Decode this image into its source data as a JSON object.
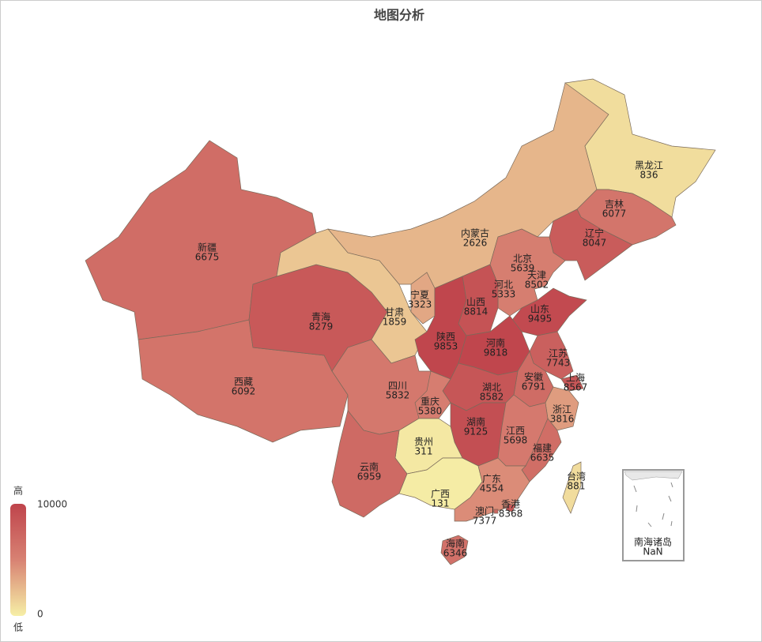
{
  "chart_data": {
    "type": "map",
    "title": "地图分析",
    "categories": [
      "新疆",
      "西藏",
      "青海",
      "甘肃",
      "内蒙古",
      "黑龙江",
      "吉林",
      "辽宁",
      "北京",
      "天津",
      "河北",
      "宁夏",
      "山西",
      "山东",
      "陕西",
      "河南",
      "江苏",
      "上海",
      "安徽",
      "湖北",
      "四川",
      "重庆",
      "浙江",
      "湖南",
      "江西",
      "贵州",
      "云南",
      "福建",
      "广西",
      "广东",
      "台湾",
      "香港",
      "澳门",
      "海南"
    ],
    "values": [
      6675,
      6092,
      8279,
      1859,
      2626,
      836,
      6077,
      8047,
      5639,
      8502,
      5333,
      3323,
      8814,
      9495,
      9853,
      9818,
      7743,
      8567,
      6791,
      8582,
      5832,
      5380,
      3816,
      9125,
      5698,
      311,
      6959,
      6635,
      131,
      4554,
      881,
      8368,
      7377,
      6346
    ],
    "inset": {
      "name": "南海诸岛",
      "value_label": "NaN"
    },
    "visual_map": {
      "range": [
        0,
        10000
      ],
      "text_high": "高",
      "text_low": "低",
      "colors": [
        "#f6efa6",
        "#d88273",
        "#bf444c"
      ]
    }
  }
}
